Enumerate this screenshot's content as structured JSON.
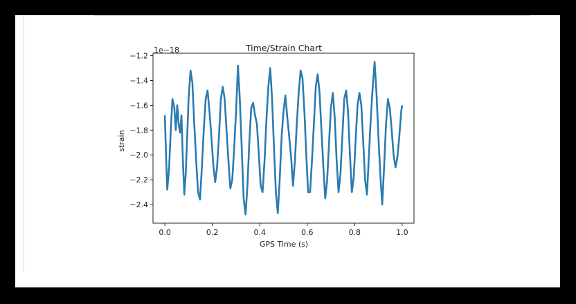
{
  "chart_data": {
    "type": "line",
    "title": "Time/Strain Chart",
    "xlabel": "GPS Time (s)",
    "ylabel": "strain",
    "y_offset_label": "1e−18",
    "xlim": [
      -0.05,
      1.05
    ],
    "ylim": [
      -2.55,
      -1.18
    ],
    "x_ticks": [
      0.0,
      0.2,
      0.4,
      0.6,
      0.8,
      1.0
    ],
    "x_tick_labels": [
      "0.0",
      "0.2",
      "0.4",
      "0.6",
      "0.8",
      "1.0"
    ],
    "y_ticks": [
      -1.2,
      -1.4,
      -1.6,
      -1.8,
      -2.0,
      -2.2,
      -2.4
    ],
    "y_tick_labels": [
      "−1.2",
      "−1.4",
      "−1.6",
      "−1.8",
      "−2.0",
      "−2.2",
      "−2.4"
    ],
    "grid": false,
    "series": [
      {
        "color": "#2b7bb0",
        "x": [
          0.0,
          0.005,
          0.01,
          0.018,
          0.025,
          0.032,
          0.04,
          0.046,
          0.052,
          0.058,
          0.064,
          0.07,
          0.076,
          0.082,
          0.088,
          0.094,
          0.1,
          0.108,
          0.116,
          0.124,
          0.132,
          0.14,
          0.148,
          0.156,
          0.164,
          0.172,
          0.18,
          0.188,
          0.196,
          0.204,
          0.212,
          0.22,
          0.228,
          0.236,
          0.244,
          0.252,
          0.26,
          0.268,
          0.276,
          0.284,
          0.292,
          0.3,
          0.308,
          0.316,
          0.324,
          0.332,
          0.34,
          0.348,
          0.356,
          0.364,
          0.372,
          0.38,
          0.388,
          0.396,
          0.404,
          0.412,
          0.42,
          0.428,
          0.436,
          0.444,
          0.452,
          0.46,
          0.468,
          0.476,
          0.484,
          0.492,
          0.5,
          0.508,
          0.516,
          0.524,
          0.532,
          0.54,
          0.548,
          0.556,
          0.564,
          0.572,
          0.58,
          0.588,
          0.596,
          0.604,
          0.612,
          0.62,
          0.628,
          0.636,
          0.644,
          0.652,
          0.66,
          0.668,
          0.676,
          0.684,
          0.692,
          0.7,
          0.708,
          0.716,
          0.724,
          0.732,
          0.74,
          0.748,
          0.756,
          0.764,
          0.772,
          0.78,
          0.788,
          0.796,
          0.804,
          0.812,
          0.82,
          0.828,
          0.836,
          0.844,
          0.852,
          0.86,
          0.868,
          0.876,
          0.884,
          0.892,
          0.9,
          0.908,
          0.916,
          0.924,
          0.932,
          0.94,
          0.948,
          0.956,
          0.964,
          0.972,
          0.98,
          0.988,
          0.996,
          1.0
        ],
        "y": [
          -1.68,
          -2.0,
          -2.28,
          -2.1,
          -1.8,
          -1.55,
          -1.62,
          -1.8,
          -1.6,
          -1.75,
          -1.82,
          -1.68,
          -2.05,
          -2.32,
          -2.15,
          -1.85,
          -1.55,
          -1.32,
          -1.42,
          -1.75,
          -2.05,
          -2.3,
          -2.36,
          -2.1,
          -1.8,
          -1.55,
          -1.48,
          -1.65,
          -1.85,
          -2.08,
          -2.22,
          -2.1,
          -1.85,
          -1.55,
          -1.45,
          -1.55,
          -1.8,
          -2.05,
          -2.27,
          -2.2,
          -1.95,
          -1.65,
          -1.28,
          -1.55,
          -1.95,
          -2.35,
          -2.48,
          -2.25,
          -1.9,
          -1.62,
          -1.58,
          -1.68,
          -1.75,
          -2.0,
          -2.25,
          -2.3,
          -2.05,
          -1.72,
          -1.45,
          -1.3,
          -1.55,
          -1.95,
          -2.3,
          -2.47,
          -2.2,
          -1.85,
          -1.65,
          -1.52,
          -1.7,
          -1.85,
          -2.02,
          -2.25,
          -2.05,
          -1.75,
          -1.5,
          -1.32,
          -1.38,
          -1.65,
          -2.0,
          -2.3,
          -2.3,
          -2.05,
          -1.75,
          -1.45,
          -1.35,
          -1.5,
          -1.8,
          -2.1,
          -2.35,
          -2.2,
          -1.9,
          -1.62,
          -1.5,
          -1.7,
          -2.05,
          -2.3,
          -2.15,
          -1.85,
          -1.55,
          -1.48,
          -1.65,
          -2.0,
          -2.3,
          -2.18,
          -1.88,
          -1.6,
          -1.5,
          -1.6,
          -1.9,
          -2.2,
          -2.32,
          -2.0,
          -1.7,
          -1.45,
          -1.25,
          -1.5,
          -1.85,
          -2.15,
          -2.4,
          -2.1,
          -1.75,
          -1.55,
          -1.62,
          -1.8,
          -2.0,
          -2.1,
          -2.02,
          -1.85,
          -1.65,
          -1.6
        ]
      }
    ]
  }
}
